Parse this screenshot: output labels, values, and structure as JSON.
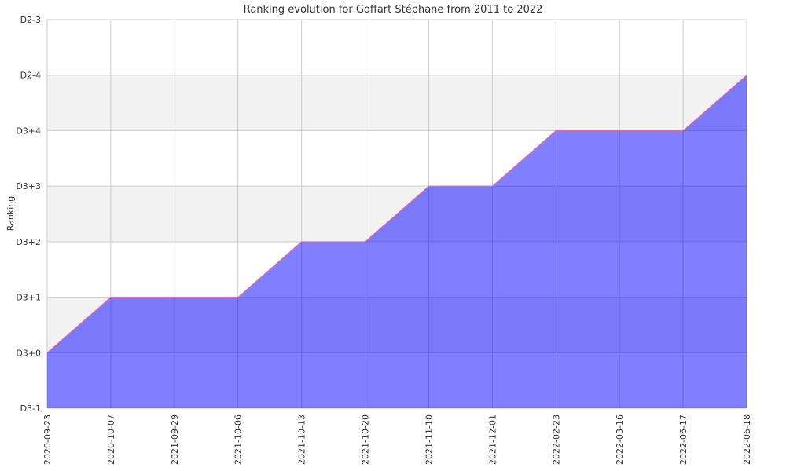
{
  "chart_data": {
    "type": "area",
    "title": "Ranking evolution for Goffart Stéphane from 2011 to 2022",
    "xlabel": "",
    "ylabel": "Ranking",
    "y_categories": [
      "D3-1",
      "D3+0",
      "D3+1",
      "D3+2",
      "D3+3",
      "D3+4",
      "D2-4",
      "D2-3"
    ],
    "x": [
      "2020-09-23",
      "2020-10-07",
      "2021-09-29",
      "2021-10-06",
      "2021-10-13",
      "2021-10-20",
      "2021-11-10",
      "2021-12-01",
      "2022-02-23",
      "2022-03-16",
      "2022-06-17",
      "2022-06-18"
    ],
    "values": [
      "D3+0",
      "D3+1",
      "D3+1",
      "D3+1",
      "D3+2",
      "D3+2",
      "D3+3",
      "D3+3",
      "D3+4",
      "D3+4",
      "D3+4",
      "D2-4"
    ],
    "grid": true,
    "colors": {
      "fill": "#0000ff",
      "fill_opacity": 0.5,
      "line": "#ff6699",
      "band": "#f2f2f2",
      "grid": "#cccccc"
    }
  }
}
